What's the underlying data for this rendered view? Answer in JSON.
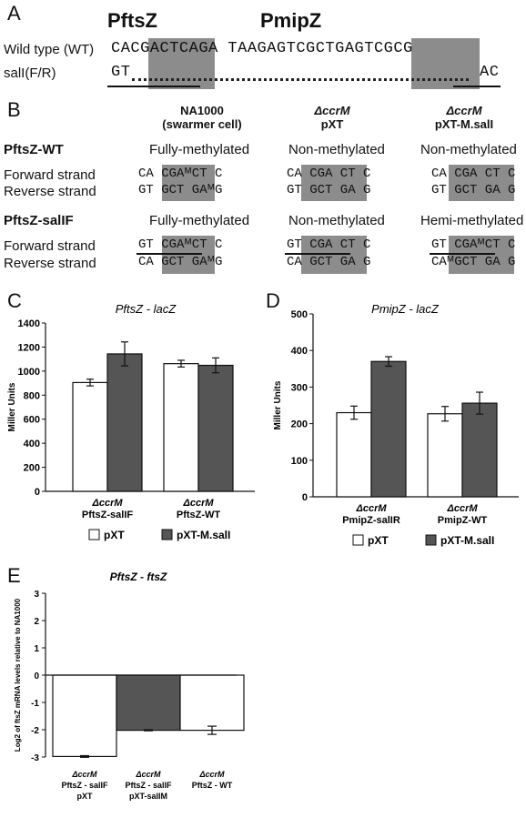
{
  "panelA": {
    "letter": "A",
    "pftsz_title": "PftsZ",
    "pmipz_title": "PmipZ",
    "wt_label": "Wild type (WT)",
    "sali_label": "salI(F/R)",
    "wt_seq": "CACGACTCAGA TAAGAGTCGCTGAGTCGCG",
    "sali_seq_start": "GT",
    "sali_seq_end": "AC"
  },
  "panelB": {
    "letter": "B",
    "col_headers": [
      {
        "line1": "NA1000",
        "line2": "(swarmer cell)"
      },
      {
        "line1": "ΔccrM",
        "line2": "pXT"
      },
      {
        "line1": "ΔccrM",
        "line2": "pXT-M.salI"
      }
    ],
    "groups": [
      {
        "name": "PftsZ-WT",
        "status": [
          "Fully-methylated",
          "Non-methylated",
          "Non-methylated"
        ],
        "forward_label": "Forward strand",
        "reverse_label": "Reverse strand",
        "forward": [
          "CA CGAᴹCT C",
          "CA CGA CT C",
          "CA CGA CT C"
        ],
        "reverse": [
          "GT GCT GAᴹG",
          "GT GCT GA G",
          "GT GCT GA G"
        ]
      },
      {
        "name": "PftsZ-salIF",
        "status": [
          "Fully-methylated",
          "Non-methylated",
          "Hemi-methylated"
        ],
        "forward_label": "Forward strand",
        "reverse_label": "Reverse strand",
        "forward": [
          "GT CGAᴹCT C",
          "GT CGA CT C",
          "GT CGAᴹCT C"
        ],
        "reverse": [
          "CA GCT GAᴹG",
          "CA GCT GA G",
          "CAᴹGCT GA G"
        ]
      }
    ]
  },
  "chart_data": [
    {
      "panel": "C",
      "type": "bar",
      "title": "PftsZ - lacZ",
      "ylabel": "Miller Units",
      "ylim": [
        0,
        1400
      ],
      "yticks": [
        0,
        200,
        400,
        600,
        800,
        1000,
        1200,
        1400
      ],
      "categories": [
        {
          "line1": "ΔccrM",
          "line2": "PftsZ-salIF"
        },
        {
          "line1": "ΔccrM",
          "line2": "PftsZ-WT"
        }
      ],
      "series": [
        {
          "name": "pXT",
          "values": [
            905,
            1062
          ],
          "errors": [
            28,
            28
          ]
        },
        {
          "name": "pXT-M.salI",
          "values": [
            1143,
            1048
          ],
          "errors": [
            100,
            62
          ]
        }
      ],
      "legend": [
        "pXT",
        "pXT-M.salI"
      ]
    },
    {
      "panel": "D",
      "type": "bar",
      "title": "PmipZ - lacZ",
      "ylabel": "Miller Units",
      "ylim": [
        0,
        500
      ],
      "yticks": [
        0,
        100,
        200,
        300,
        400,
        500
      ],
      "categories": [
        {
          "line1": "ΔccrM",
          "line2": "PmipZ-salIR"
        },
        {
          "line1": "ΔccrM",
          "line2": "PmipZ-WT"
        }
      ],
      "series": [
        {
          "name": "pXT",
          "values": [
            230,
            227
          ],
          "errors": [
            18,
            20
          ]
        },
        {
          "name": "pXT-M.salI",
          "values": [
            370,
            256
          ],
          "errors": [
            13,
            30
          ]
        }
      ],
      "legend": [
        "pXT",
        "pXT-M.salI"
      ]
    },
    {
      "panel": "E",
      "type": "bar",
      "title": "PftsZ - ftsZ",
      "ylabel": "Log2 of ftsZ mRNA levels relative to NA1000",
      "ylim": [
        -3,
        3
      ],
      "yticks": [
        -3,
        -2,
        -1,
        0,
        1,
        2,
        3
      ],
      "categories": [
        {
          "line1": "ΔccrM",
          "line2": "PftsZ - salIF",
          "line3": "pXT"
        },
        {
          "line1": "ΔccrM",
          "line2": "PftsZ - salIF",
          "line3": "pXT-salIM"
        },
        {
          "line1": "ΔccrM",
          "line2": "PftsZ - WT",
          "line3": ""
        }
      ],
      "values": [
        -2.98,
        -2.02,
        -2.02
      ],
      "errors": [
        0.03,
        0.02,
        0.15
      ],
      "colors": [
        "#ffffff",
        "#555555",
        "#ffffff"
      ]
    }
  ],
  "colors": {
    "white_bar": "#ffffff",
    "dark_bar": "#555555",
    "highlight": "#8c8c8c"
  }
}
